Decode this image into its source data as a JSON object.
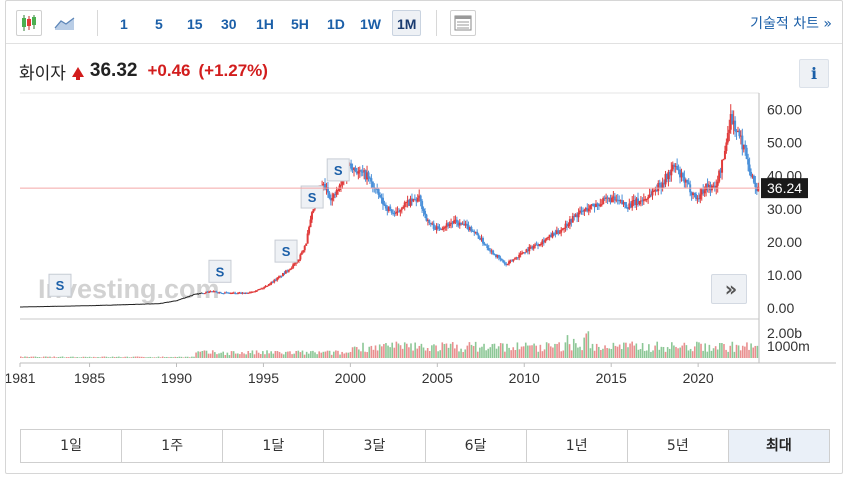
{
  "toolbar": {
    "intervals": [
      "1",
      "5",
      "15",
      "30",
      "1H",
      "5H",
      "1D",
      "1W",
      "1M"
    ],
    "active_interval": "1M",
    "technical_chart_link": "기술적 차트 »",
    "icons": [
      "candlestick-icon",
      "area-chart-icon",
      "table-icon"
    ]
  },
  "quote": {
    "name": "화이자",
    "price": "36.32",
    "change": "+0.46",
    "change_pct": "(+1.27%)",
    "direction": "up",
    "info_label": "i"
  },
  "watermark": "Investing.com",
  "scroll_label": "»",
  "ranges": [
    "1일",
    "1주",
    "1달",
    "3달",
    "6달",
    "1년",
    "5년",
    "최대"
  ],
  "active_range": "최대",
  "colors": {
    "up": "#e03b3b",
    "down": "#4a90d9",
    "accent": "#1b5fa8",
    "price_line": "#f4a6a6",
    "current_price_bg": "#1a1a1a"
  },
  "chart_data": {
    "type": "candlestick",
    "price_axis": {
      "ticks": [
        "60.00",
        "50.00",
        "40.00",
        "30.00",
        "20.00",
        "10.00",
        "0.00"
      ],
      "range": [
        0,
        65
      ]
    },
    "volume_axis": {
      "ticks": [
        "2.00b",
        "1000m"
      ]
    },
    "x_axis": {
      "ticks": [
        "1981",
        "1985",
        "1990",
        "1995",
        "2000",
        "2005",
        "2010",
        "2015",
        "2020"
      ],
      "range": [
        1981,
        2023.5
      ]
    },
    "current_price": 36.24,
    "current_price_label": "36.24",
    "split_markers": {
      "label": "S",
      "years": [
        1983.3,
        1992.5,
        1996.3,
        1997.8,
        1999.3
      ]
    },
    "series": [
      {
        "x": 1981,
        "y": 0.3
      },
      {
        "x": 1983,
        "y": 0.5
      },
      {
        "x": 1985,
        "y": 0.7
      },
      {
        "x": 1987,
        "y": 1.0
      },
      {
        "x": 1989,
        "y": 1.3
      },
      {
        "x": 1990,
        "y": 2.2
      },
      {
        "x": 1991,
        "y": 4.0
      },
      {
        "x": 1992,
        "y": 5.0
      },
      {
        "x": 1993,
        "y": 4.5
      },
      {
        "x": 1994,
        "y": 4.4
      },
      {
        "x": 1995,
        "y": 6.0
      },
      {
        "x": 1996,
        "y": 9.5
      },
      {
        "x": 1997,
        "y": 14.0
      },
      {
        "x": 1997.5,
        "y": 20.0
      },
      {
        "x": 1998,
        "y": 32.0
      },
      {
        "x": 1998.5,
        "y": 37.0
      },
      {
        "x": 1999,
        "y": 33.0
      },
      {
        "x": 1999.5,
        "y": 37.0
      },
      {
        "x": 2000,
        "y": 44.0
      },
      {
        "x": 2000.5,
        "y": 41.0
      },
      {
        "x": 2001,
        "y": 40.0
      },
      {
        "x": 2002,
        "y": 31.0
      },
      {
        "x": 2002.7,
        "y": 28.0
      },
      {
        "x": 2003,
        "y": 31.0
      },
      {
        "x": 2004,
        "y": 33.0
      },
      {
        "x": 2004.5,
        "y": 26.0
      },
      {
        "x": 2005,
        "y": 24.0
      },
      {
        "x": 2006,
        "y": 26.0
      },
      {
        "x": 2007,
        "y": 24.0
      },
      {
        "x": 2008,
        "y": 18.0
      },
      {
        "x": 2009,
        "y": 13.0
      },
      {
        "x": 2010,
        "y": 17.0
      },
      {
        "x": 2011,
        "y": 20.0
      },
      {
        "x": 2012,
        "y": 23.0
      },
      {
        "x": 2013,
        "y": 28.0
      },
      {
        "x": 2014,
        "y": 31.0
      },
      {
        "x": 2015,
        "y": 33.0
      },
      {
        "x": 2016,
        "y": 31.0
      },
      {
        "x": 2017,
        "y": 33.0
      },
      {
        "x": 2018,
        "y": 38.0
      },
      {
        "x": 2018.7,
        "y": 43.0
      },
      {
        "x": 2019,
        "y": 40.0
      },
      {
        "x": 2020,
        "y": 33.0
      },
      {
        "x": 2020.5,
        "y": 37.0
      },
      {
        "x": 2021,
        "y": 36.0
      },
      {
        "x": 2021.5,
        "y": 45.0
      },
      {
        "x": 2021.9,
        "y": 58.0
      },
      {
        "x": 2022.3,
        "y": 53.0
      },
      {
        "x": 2022.8,
        "y": 47.0
      },
      {
        "x": 2023.1,
        "y": 40.0
      },
      {
        "x": 2023.4,
        "y": 36.3
      }
    ]
  }
}
